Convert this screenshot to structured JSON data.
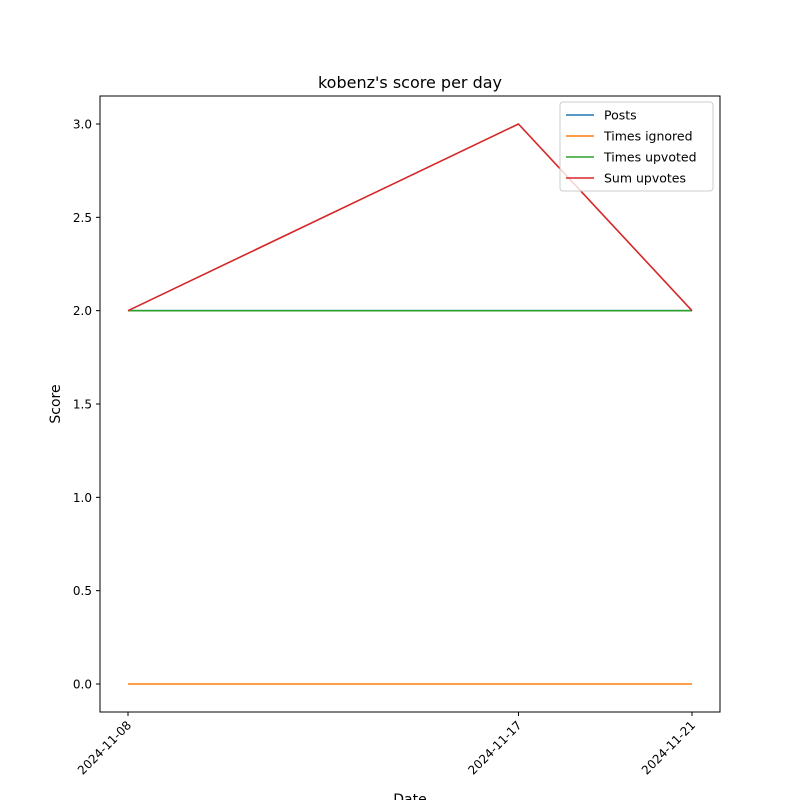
{
  "chart_data": {
    "type": "line",
    "title": "kobenz's score per day",
    "xlabel": "Date",
    "ylabel": "Score",
    "x": [
      "2024-11-08",
      "2024-11-17",
      "2024-11-21"
    ],
    "ylim": [
      -0.15,
      3.15
    ],
    "yticks": [
      "0.0",
      "0.5",
      "1.0",
      "1.5",
      "2.0",
      "2.5",
      "3.0"
    ],
    "ytick_values": [
      0,
      0.5,
      1.0,
      1.5,
      2.0,
      2.5,
      3.0
    ],
    "grid": false,
    "legend_position": "top-right",
    "series": [
      {
        "name": "Posts",
        "color": "#1f77b4",
        "values": [
          2,
          2,
          2
        ]
      },
      {
        "name": "Times ignored",
        "color": "#ff7f0e",
        "values": [
          0,
          0,
          0
        ]
      },
      {
        "name": "Times upvoted",
        "color": "#2ca02c",
        "values": [
          2,
          2,
          2
        ]
      },
      {
        "name": "Sum upvotes",
        "color": "#d62728",
        "values": [
          2,
          3,
          2
        ]
      }
    ]
  }
}
